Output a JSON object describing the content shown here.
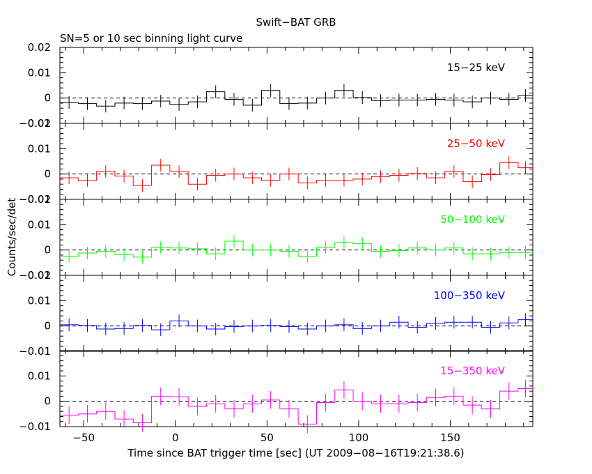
{
  "chart_data": {
    "type": "line",
    "title": "Swift−BAT GRB",
    "subtitle": "SN=5 or 10 sec binning light curve",
    "xlabel": "Time since BAT trigger time [sec] (UT 2009−08−16T19:21:38.6)",
    "ylabel": "Counts/sec/det",
    "xlim": [
      -63,
      195
    ],
    "x_ticks": [
      -50,
      0,
      50,
      100,
      150
    ],
    "x_tick_labels": [
      "−50",
      "0",
      "50",
      "100",
      "150"
    ],
    "bin_edges": [
      -63,
      -53,
      -43,
      -33,
      -23,
      -13,
      -3,
      7,
      17,
      27,
      37,
      47,
      57,
      67,
      77,
      87,
      97,
      107,
      117,
      127,
      137,
      147,
      157,
      167,
      177,
      187,
      195
    ],
    "grid": false,
    "panels": [
      {
        "label": "15−25 keV",
        "color": "#000000",
        "ylim": [
          -0.01,
          0.02
        ],
        "y_ticks": [
          -0.01,
          0,
          0.01,
          0.02
        ],
        "y_tick_labels": [
          "−0.01",
          "0",
          "0.01",
          "0.02"
        ],
        "values": [
          -0.0018,
          -0.0022,
          -0.0032,
          -0.002,
          -0.0022,
          -0.0012,
          -0.0025,
          -0.0015,
          0.0025,
          -0.0005,
          -0.0028,
          0.003,
          -0.0022,
          -0.002,
          0.0,
          0.003,
          0.0002,
          -0.001,
          -0.0008,
          -0.0008,
          -0.0005,
          -0.0008,
          -0.0015,
          0.0,
          -0.0005,
          0.001
        ],
        "errors": [
          0.0025,
          0.0025,
          0.0025,
          0.0025,
          0.0025,
          0.0025,
          0.0025,
          0.0025,
          0.0025,
          0.0025,
          0.0025,
          0.0025,
          0.0025,
          0.0025,
          0.0025,
          0.0025,
          0.0025,
          0.0025,
          0.0025,
          0.0025,
          0.0025,
          0.0025,
          0.0025,
          0.0025,
          0.0025,
          0.0025
        ]
      },
      {
        "label": "25−50 keV",
        "color": "#ff0000",
        "ylim": [
          -0.01,
          0.02
        ],
        "y_ticks": [
          -0.01,
          0,
          0.01,
          0.02
        ],
        "y_tick_labels": [
          "−0.01",
          "0",
          "0.01",
          "0.02"
        ],
        "values": [
          -0.0015,
          -0.0025,
          0.001,
          -0.0008,
          -0.0045,
          0.0035,
          0.001,
          -0.004,
          -0.0005,
          0.0,
          -0.0015,
          -0.0025,
          0.0,
          -0.0035,
          -0.0025,
          -0.0025,
          -0.002,
          -0.001,
          -0.0005,
          0.0002,
          -0.0015,
          0.001,
          -0.003,
          -0.0002,
          0.0045,
          0.0025
        ],
        "errors": [
          0.0025,
          0.0025,
          0.0025,
          0.0025,
          0.0025,
          0.0025,
          0.0025,
          0.0025,
          0.0025,
          0.0025,
          0.0025,
          0.0025,
          0.0025,
          0.0025,
          0.0025,
          0.0025,
          0.0025,
          0.0025,
          0.0025,
          0.0025,
          0.0025,
          0.0025,
          0.0025,
          0.0025,
          0.0025,
          0.0025
        ]
      },
      {
        "label": "50−100 keV",
        "color": "#00ff00",
        "ylim": [
          -0.01,
          0.02
        ],
        "y_ticks": [
          -0.01,
          0,
          0.01,
          0.02
        ],
        "y_tick_labels": [
          "−0.01",
          "0",
          "0.01",
          "0.02"
        ],
        "values": [
          -0.0025,
          -0.0012,
          -0.0005,
          -0.0018,
          -0.0028,
          0.001,
          0.0008,
          0.0005,
          -0.0015,
          0.0035,
          0.0,
          0.0,
          -0.0005,
          -0.0025,
          0.001,
          0.003,
          0.0025,
          -0.0005,
          -0.0002,
          0.0008,
          0.0,
          0.0008,
          -0.0015,
          -0.0015,
          -0.001,
          -0.001
        ],
        "errors": [
          0.0025,
          0.0025,
          0.0025,
          0.0025,
          0.0025,
          0.0025,
          0.0025,
          0.0025,
          0.0025,
          0.0025,
          0.0025,
          0.0025,
          0.0025,
          0.0025,
          0.0025,
          0.0025,
          0.0025,
          0.0025,
          0.0025,
          0.0025,
          0.0025,
          0.0025,
          0.0025,
          0.0025,
          0.0025,
          0.0025
        ]
      },
      {
        "label": "100−350 keV",
        "color": "#0000ff",
        "ylim": [
          -0.01,
          0.02
        ],
        "y_ticks": [
          -0.01,
          0,
          0.01,
          0.02
        ],
        "y_tick_labels": [
          "−0.01",
          "0",
          "0.01",
          "0.02"
        ],
        "values": [
          0.0005,
          0.0002,
          -0.0012,
          -0.001,
          0.0002,
          -0.0015,
          0.002,
          0.0,
          -0.0012,
          -0.0002,
          0.0,
          0.0002,
          -0.0002,
          -0.0012,
          0.0,
          0.0005,
          -0.001,
          0.0,
          0.0015,
          -0.0005,
          0.001,
          0.0015,
          0.0015,
          -0.0005,
          0.0012,
          0.0025
        ],
        "errors": [
          0.0025,
          0.0025,
          0.0025,
          0.0025,
          0.0025,
          0.0025,
          0.0025,
          0.0025,
          0.0025,
          0.0025,
          0.0025,
          0.0025,
          0.0025,
          0.0025,
          0.0025,
          0.0025,
          0.0025,
          0.0025,
          0.0025,
          0.0025,
          0.0025,
          0.0025,
          0.0025,
          0.0025,
          0.0025,
          0.0025
        ]
      },
      {
        "label": "15−350 keV",
        "color": "#ff00ff",
        "ylim": [
          -0.01,
          0.02
        ],
        "y_ticks": [
          -0.01,
          0,
          0.01
        ],
        "y_tick_labels": [
          "−0.01",
          "0",
          "0.01"
        ],
        "values": [
          -0.0055,
          -0.005,
          -0.004,
          -0.007,
          -0.0085,
          0.002,
          0.0018,
          -0.002,
          -0.001,
          -0.003,
          -0.001,
          0.0005,
          -0.003,
          -0.009,
          -0.0005,
          0.0045,
          0.0,
          -0.001,
          -0.001,
          -0.0005,
          0.0015,
          0.002,
          -0.0015,
          -0.003,
          0.004,
          0.005
        ],
        "errors": [
          0.0035,
          0.0035,
          0.0035,
          0.0035,
          0.0035,
          0.0035,
          0.0035,
          0.0035,
          0.0035,
          0.0035,
          0.0035,
          0.0035,
          0.0035,
          0.0035,
          0.0035,
          0.0035,
          0.0035,
          0.0035,
          0.0035,
          0.0035,
          0.0035,
          0.0035,
          0.0035,
          0.0035,
          0.0035,
          0.0035
        ]
      }
    ]
  }
}
